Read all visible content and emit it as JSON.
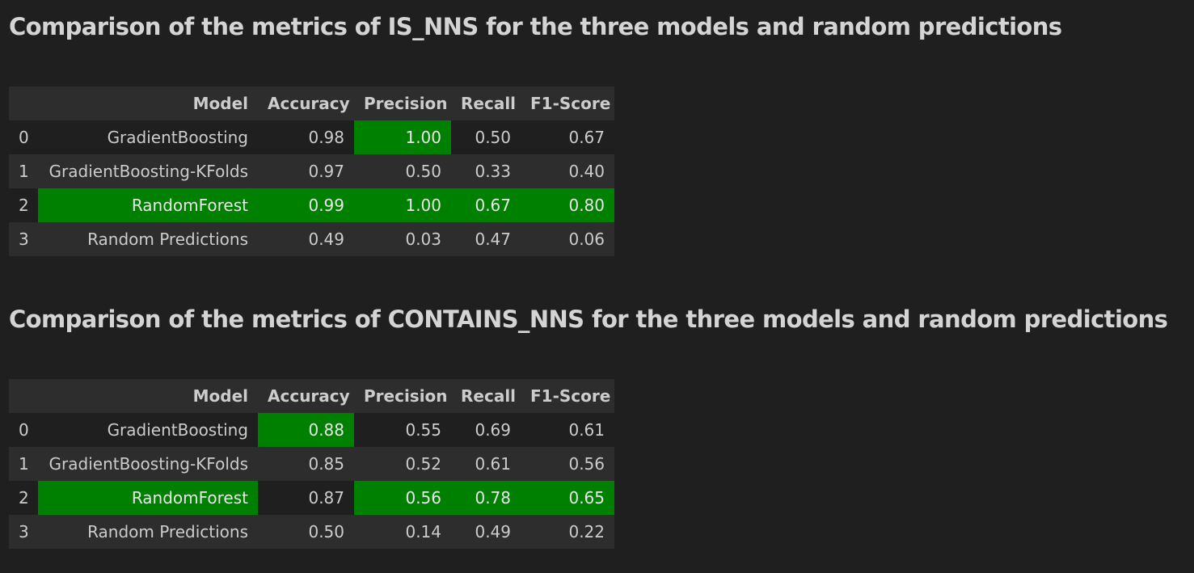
{
  "highlight_color": "#008000",
  "columns": [
    "",
    "Model",
    "Accuracy",
    "Precision",
    "Recall",
    "F1-Score"
  ],
  "tables": [
    {
      "title": "Comparison of the metrics of IS_NNS for the three models and random predictions",
      "rows": [
        {
          "idx": "0",
          "model": "GradientBoosting",
          "accuracy": "0.98",
          "precision": "1.00",
          "recall": "0.50",
          "f1": "0.67",
          "highlighted": [
            "precision"
          ]
        },
        {
          "idx": "1",
          "model": "GradientBoosting-KFolds",
          "accuracy": "0.97",
          "precision": "0.50",
          "recall": "0.33",
          "f1": "0.40",
          "highlighted": []
        },
        {
          "idx": "2",
          "model": "RandomForest",
          "accuracy": "0.99",
          "precision": "1.00",
          "recall": "0.67",
          "f1": "0.80",
          "highlighted": [
            "model",
            "accuracy",
            "precision",
            "recall",
            "f1"
          ]
        },
        {
          "idx": "3",
          "model": "Random Predictions",
          "accuracy": "0.49",
          "precision": "0.03",
          "recall": "0.47",
          "f1": "0.06",
          "highlighted": []
        }
      ]
    },
    {
      "title": "Comparison of the metrics of CONTAINS_NNS for the three models and random predictions",
      "rows": [
        {
          "idx": "0",
          "model": "GradientBoosting",
          "accuracy": "0.88",
          "precision": "0.55",
          "recall": "0.69",
          "f1": "0.61",
          "highlighted": [
            "accuracy"
          ]
        },
        {
          "idx": "1",
          "model": "GradientBoosting-KFolds",
          "accuracy": "0.85",
          "precision": "0.52",
          "recall": "0.61",
          "f1": "0.56",
          "highlighted": []
        },
        {
          "idx": "2",
          "model": "RandomForest",
          "accuracy": "0.87",
          "precision": "0.56",
          "recall": "0.78",
          "f1": "0.65",
          "highlighted": [
            "model",
            "precision",
            "recall",
            "f1"
          ]
        },
        {
          "idx": "3",
          "model": "Random Predictions",
          "accuracy": "0.50",
          "precision": "0.14",
          "recall": "0.49",
          "f1": "0.22",
          "highlighted": []
        }
      ]
    }
  ]
}
